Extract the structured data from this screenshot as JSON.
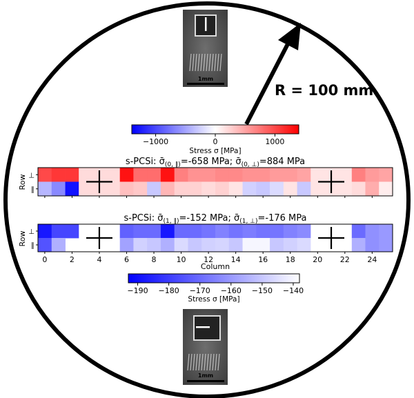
{
  "wafer": {
    "radius_label": "R = 100 mm"
  },
  "micrographs": {
    "top": {
      "scale_label": "1mm",
      "slit_direction": "vertical"
    },
    "bottom": {
      "scale_label": "1mm",
      "slit_direction": "horizontal"
    }
  },
  "colorbar_top": {
    "ticks": [
      "−1000",
      "0",
      "1000"
    ],
    "tick_values": [
      -1000,
      0,
      1000
    ],
    "range": [
      -1400,
      1400
    ],
    "label": "Stress σ [MPa]",
    "colormap": "bwr",
    "colors": {
      "low": "#0000ff",
      "mid": "#ffffff",
      "high": "#ff0000"
    }
  },
  "colorbar_bottom": {
    "ticks": [
      "−190",
      "−180",
      "−170",
      "−160",
      "−150",
      "−140"
    ],
    "tick_values": [
      -190,
      -180,
      -170,
      -160,
      -150,
      -140
    ],
    "range": [
      -193,
      -138
    ],
    "label": "Stress σ [MPa]",
    "colormap": "blues",
    "colors": {
      "low": "#0000ff",
      "high": "#ffffff"
    }
  },
  "chart_data": [
    {
      "type": "heatmap",
      "title_plain": "s-PCSi: σ̄(0, ∥)=-658 MPa; σ̄(0, ⊥)=884 MPa",
      "title_parts": {
        "prefix": "s-PCSi: ",
        "sym1": "σ̄",
        "sub1": "(0, ∥)",
        "val1": "=-658 MPa; ",
        "sym2": "σ̄",
        "sub2": "(0, ⊥)",
        "val2": "=884 MPa"
      },
      "ylabel": "Row",
      "rows": [
        "⊥",
        "∥"
      ],
      "columns": 26,
      "markers": [
        {
          "label": "+",
          "start_column": 3,
          "end_column": 5
        },
        {
          "label": "+",
          "start_column": 20,
          "end_column": 22
        }
      ],
      "vmin": -1400,
      "vmax": 1400,
      "values": [
        [
          1000,
          1100,
          1100,
          200,
          200,
          200,
          1300,
          800,
          800,
          1300,
          700,
          600,
          600,
          650,
          650,
          600,
          600,
          550,
          550,
          500,
          150,
          150,
          150,
          700,
          550,
          500
        ],
        [
          -400,
          -650,
          -1300,
          200,
          200,
          200,
          350,
          300,
          -300,
          400,
          250,
          250,
          200,
          250,
          150,
          -250,
          -300,
          -200,
          150,
          -300,
          150,
          150,
          150,
          200,
          450,
          100
        ]
      ]
    },
    {
      "type": "heatmap",
      "title_plain": "s-PCSi: σ̄(1, ∥)=-152 MPa; σ̄(1, ⊥)=-176 MPa",
      "title_parts": {
        "prefix": "s-PCSi: ",
        "sym1": "σ̄",
        "sub1": "(1, ∥)",
        "val1": "=-152 MPa; ",
        "sym2": "σ̄",
        "sub2": "(1, ⊥)",
        "val2": "=-176 MPa"
      },
      "ylabel": "Row",
      "xlabel": "Column",
      "rows": [
        "⊥",
        "∥"
      ],
      "columns": 26,
      "xticks": [
        0,
        2,
        4,
        6,
        8,
        10,
        12,
        14,
        16,
        18,
        20,
        22,
        24
      ],
      "markers": [
        {
          "label": "+",
          "start_column": 3,
          "end_column": 5
        },
        {
          "label": "+",
          "start_column": 20,
          "end_column": 22
        }
      ],
      "vmin": -193,
      "vmax": -138,
      "values": [
        [
          -188,
          -178,
          -178,
          null,
          null,
          null,
          -172,
          -170,
          -170,
          -188,
          -170,
          -170,
          -168,
          -165,
          -168,
          -166,
          -168,
          -168,
          -165,
          -163,
          null,
          null,
          null,
          -170,
          -162,
          -160
        ],
        [
          -175,
          -155,
          null,
          null,
          null,
          null,
          -158,
          -148,
          -150,
          -155,
          -146,
          -150,
          -148,
          -147,
          -150,
          -140,
          -140,
          -150,
          -148,
          -146,
          null,
          null,
          null,
          -155,
          -162,
          -160
        ]
      ]
    }
  ]
}
